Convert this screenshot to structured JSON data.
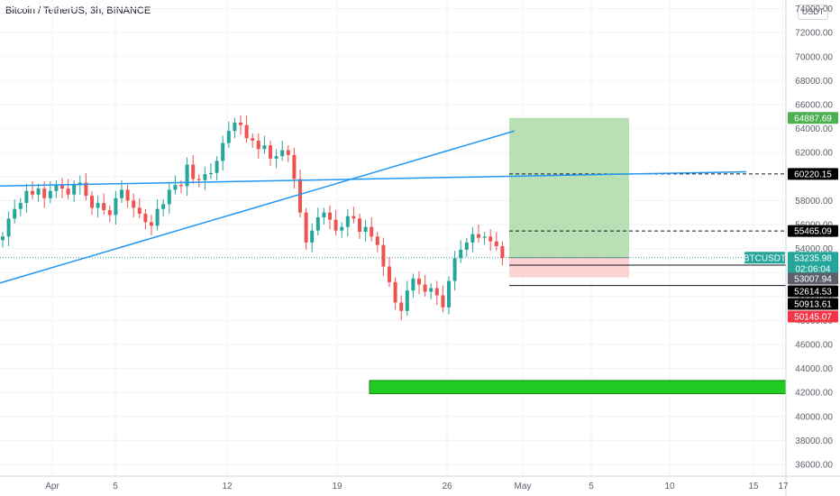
{
  "header": {
    "title": "Bitcoin / TetherUS, 3h, BINANCE",
    "currency_button": "USDT"
  },
  "chart_data": {
    "type": "candlestick",
    "symbol": "BTCUSDT",
    "ylim": [
      35000,
      74500
    ],
    "y_ticks": [
      "74000.00",
      "72000.00",
      "70000.00",
      "68000.00",
      "66000.00",
      "64000.00",
      "62000.00",
      "60000.00",
      "58000.00",
      "56000.00",
      "54000.00",
      "52000.00",
      "50000.00",
      "48000.00",
      "46000.00",
      "44000.00",
      "42000.00",
      "40000.00",
      "38000.00",
      "36000.00"
    ],
    "x_ticks": [
      "Apr",
      "5",
      "12",
      "19",
      "26",
      "May",
      "5",
      "10",
      "15",
      "17"
    ],
    "close_series": [
      [
        0,
        55000
      ],
      [
        1,
        56500
      ],
      [
        2,
        57300
      ],
      [
        3,
        57800
      ],
      [
        4,
        58800
      ],
      [
        5,
        58500
      ],
      [
        6,
        59000
      ],
      [
        7,
        58200
      ],
      [
        8,
        58800
      ],
      [
        9,
        59300
      ],
      [
        10,
        59000
      ],
      [
        11,
        58500
      ],
      [
        12,
        59300
      ],
      [
        13,
        59500
      ],
      [
        14,
        58400
      ],
      [
        15,
        57400
      ],
      [
        16,
        57800
      ],
      [
        17,
        57200
      ],
      [
        18,
        56800
      ],
      [
        19,
        58200
      ],
      [
        20,
        58900
      ],
      [
        21,
        58000
      ],
      [
        22,
        57400
      ],
      [
        23,
        56900
      ],
      [
        24,
        56200
      ],
      [
        25,
        55900
      ],
      [
        26,
        57300
      ],
      [
        27,
        57700
      ],
      [
        28,
        58900
      ],
      [
        29,
        59300
      ],
      [
        30,
        59200
      ],
      [
        31,
        61000
      ],
      [
        32,
        59800
      ],
      [
        33,
        59700
      ],
      [
        34,
        60200
      ],
      [
        35,
        60300
      ],
      [
        36,
        61300
      ],
      [
        37,
        62800
      ],
      [
        38,
        63800
      ],
      [
        39,
        64500
      ],
      [
        40,
        64300
      ],
      [
        41,
        63200
      ],
      [
        42,
        63000
      ],
      [
        43,
        62300
      ],
      [
        44,
        62600
      ],
      [
        45,
        61500
      ],
      [
        46,
        61700
      ],
      [
        47,
        62200
      ],
      [
        48,
        61800
      ],
      [
        49,
        59800
      ],
      [
        50,
        57000
      ],
      [
        51,
        54500
      ],
      [
        52,
        55500
      ],
      [
        53,
        56600
      ],
      [
        54,
        57000
      ],
      [
        55,
        56400
      ],
      [
        56,
        55500
      ],
      [
        57,
        55800
      ],
      [
        58,
        56700
      ],
      [
        59,
        56500
      ],
      [
        60,
        55400
      ],
      [
        61,
        55800
      ],
      [
        62,
        55000
      ],
      [
        63,
        54300
      ],
      [
        64,
        52500
      ],
      [
        65,
        51200
      ],
      [
        66,
        49500
      ],
      [
        67,
        48800
      ],
      [
        68,
        50500
      ],
      [
        69,
        51500
      ],
      [
        70,
        51000
      ],
      [
        71,
        50400
      ],
      [
        72,
        50700
      ],
      [
        73,
        50100
      ],
      [
        74,
        49100
      ],
      [
        75,
        51300
      ],
      [
        76,
        53200
      ],
      [
        77,
        53900
      ],
      [
        78,
        54500
      ],
      [
        79,
        55200
      ],
      [
        80,
        54900
      ],
      [
        81,
        55000
      ],
      [
        82,
        54600
      ],
      [
        83,
        54200
      ],
      [
        84,
        53200
      ]
    ],
    "trendlines": [
      {
        "name": "rising trendline",
        "color": "#2196f3",
        "p1": [
          -2,
          50900
        ],
        "p2": [
          86,
          63800
        ]
      },
      {
        "name": "horizontal-ish resistance",
        "color": "#2196f3",
        "p1": [
          -2,
          59200
        ],
        "p2": [
          125,
          60400
        ]
      }
    ],
    "position": {
      "type": "long",
      "entry": 53235.98,
      "target": 64887.69,
      "stop": 51600,
      "profit_color": "#b8e0b4",
      "loss_color": "#fbd3d3"
    },
    "support_zone": {
      "from": 41900,
      "to": 43000,
      "color": "#22cc22"
    },
    "horizontal_lines": [
      {
        "price": 60220.15,
        "style": "dashed"
      },
      {
        "price": 55465.09,
        "style": "dashed"
      },
      {
        "price": 52614.53,
        "style": "solid"
      },
      {
        "price": 50913.61,
        "style": "solid"
      }
    ],
    "price_labels": [
      {
        "text": "64887.69",
        "price": 64887.69,
        "bg": "#4caf50",
        "fg": "#ffffff"
      },
      {
        "text": "60220.15",
        "price": 60220.15,
        "bg": "#000000",
        "fg": "#ffffff"
      },
      {
        "text": "55465.09",
        "price": 55465.09,
        "bg": "#000000",
        "fg": "#ffffff"
      },
      {
        "text": "53235.98",
        "price": 53235.98,
        "bg": "#26a69a",
        "fg": "#ffffff"
      },
      {
        "text": "02:06:04",
        "price": null,
        "bg": "#26a69a",
        "fg": "#ffffff"
      },
      {
        "text": "53007.94",
        "price": 53007.94,
        "bg": "#5d606b",
        "fg": "#ffffff"
      },
      {
        "text": "52614.53",
        "price": 52614.53,
        "bg": "#000000",
        "fg": "#ffffff"
      },
      {
        "text": "50913.61",
        "price": 50913.61,
        "bg": "#000000",
        "fg": "#ffffff"
      },
      {
        "text": "50145.07",
        "price": 50145.07,
        "bg": "#f23645",
        "fg": "#ffffff"
      }
    ],
    "symbol_tag": {
      "text": "BTCUSDT",
      "bg": "#26a69a",
      "fg": "#ffffff"
    },
    "colors": {
      "up": "#26a69a",
      "down": "#ef5350",
      "grid": "#f0f3fa",
      "axis_text": "#5d606b"
    }
  }
}
